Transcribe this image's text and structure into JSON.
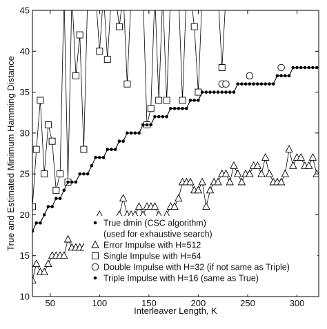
{
  "chart_data": {
    "type": "line",
    "title": "",
    "xlabel": "Interleaver Length, K",
    "ylabel": "True and Estimated Minimum Hamming Distance",
    "xlim": [
      32,
      322
    ],
    "ylim": [
      10,
      45
    ],
    "x_ticks": [
      50,
      100,
      150,
      200,
      250,
      300
    ],
    "y_ticks": [
      10,
      15,
      20,
      25,
      30,
      35,
      40,
      45
    ],
    "grid": false,
    "legend_position": "bottom-right",
    "legend": [
      {
        "marker": "dot",
        "label": "True dmin (CSC algorithm)",
        "sublabel": "(used for exhaustive search)"
      },
      {
        "marker": "triangle",
        "label": "Error Impulse with H=512"
      },
      {
        "marker": "square",
        "label": "Single Impulse with H=64"
      },
      {
        "marker": "circle",
        "label": "Double Impulse with H=32 (if not same as Triple)"
      },
      {
        "marker": "dot",
        "label": "Triple Impulse with H=16 (same as True)"
      }
    ],
    "series": [
      {
        "marker": "dot",
        "x": [
          32,
          36,
          40,
          44,
          48,
          52,
          56,
          60,
          64,
          68,
          72,
          76,
          80,
          84,
          88,
          92,
          96,
          100,
          104,
          108,
          112,
          116,
          120,
          124,
          128,
          132,
          136,
          140,
          144,
          148,
          152,
          156,
          160,
          164,
          168,
          172,
          176,
          180,
          184,
          188,
          192,
          196,
          200,
          204,
          208,
          212,
          216,
          220,
          224,
          228,
          232,
          236,
          240,
          244,
          248,
          252,
          256,
          260,
          264,
          268,
          272,
          276,
          280,
          284,
          288,
          292,
          296,
          300,
          304,
          308,
          312,
          316,
          320
        ],
        "y": [
          18,
          19,
          19,
          20,
          21,
          21,
          22,
          22,
          23,
          24,
          24,
          24,
          25,
          25,
          25,
          26,
          27,
          27,
          27,
          28,
          28,
          28,
          29,
          29,
          30,
          30,
          30,
          30,
          31,
          31,
          31,
          32,
          32,
          32,
          32,
          33,
          33,
          33,
          33,
          33,
          34,
          34,
          34,
          35,
          35,
          35,
          35,
          35,
          35,
          35,
          35,
          35,
          36,
          36,
          36,
          36,
          36,
          36,
          36,
          36,
          36,
          36,
          37,
          37,
          37,
          37,
          38,
          38,
          38,
          38,
          38,
          38,
          38
        ]
      },
      {
        "marker": "triangle",
        "x": [
          32,
          36,
          40,
          44,
          48,
          52,
          56,
          60,
          64,
          68,
          72,
          76,
          80,
          84,
          88,
          92,
          96,
          100,
          104,
          108,
          112,
          116,
          120,
          124,
          128,
          132,
          136,
          140,
          144,
          148,
          152,
          156,
          160,
          164,
          168,
          172,
          176,
          180,
          184,
          188,
          192,
          196,
          200,
          204,
          208,
          212,
          216,
          220,
          224,
          228,
          232,
          236,
          240,
          244,
          248,
          252,
          256,
          260,
          264,
          268,
          272,
          276,
          280,
          284,
          288,
          292,
          296,
          300,
          304,
          308,
          312,
          316,
          320
        ],
        "y": [
          12,
          14,
          13,
          13,
          14,
          15,
          15,
          15,
          15,
          17,
          16,
          16,
          16,
          16,
          17,
          18,
          19,
          20,
          19,
          19,
          19,
          19,
          20,
          22,
          20,
          20,
          20,
          21,
          20,
          21,
          21,
          21,
          20,
          19,
          20,
          21,
          21,
          22,
          24,
          24,
          24,
          23,
          23,
          24,
          21,
          23,
          24,
          24,
          25,
          25,
          24,
          26,
          25,
          24,
          25,
          25,
          26,
          26,
          25,
          27,
          25,
          24,
          24,
          24,
          25,
          28,
          26,
          27,
          27,
          26,
          26,
          27,
          25
        ]
      },
      {
        "marker": "square",
        "x": [
          32,
          36,
          40,
          44,
          48,
          52,
          56,
          60,
          64,
          68,
          72,
          76,
          80,
          84,
          88,
          92,
          96,
          100,
          104,
          108,
          112,
          116,
          120,
          124,
          128,
          132,
          136,
          140,
          144,
          148,
          152,
          156,
          160,
          164,
          168,
          172,
          176,
          180,
          184,
          188,
          192,
          196,
          200,
          204,
          208,
          212,
          216,
          220,
          224,
          228,
          232,
          236,
          240,
          244,
          248,
          252,
          256,
          260,
          264,
          268,
          272,
          276,
          280,
          284,
          288,
          292,
          296,
          300,
          304,
          308,
          312,
          316,
          320
        ],
        "y": [
          21,
          28,
          34,
          25,
          31,
          29,
          23,
          25,
          47,
          24,
          47,
          37,
          42,
          28,
          47,
          47,
          47,
          40,
          47,
          39,
          47,
          47,
          43,
          47,
          36,
          47,
          47,
          47,
          47,
          31,
          33,
          47,
          34,
          47,
          34,
          47,
          47,
          47,
          34,
          47,
          47,
          43,
          35,
          47,
          47,
          47,
          47,
          47,
          38,
          47,
          47,
          47,
          47,
          47,
          47,
          47,
          47,
          47,
          47,
          47,
          47,
          47,
          47,
          47,
          47,
          47,
          47,
          47,
          47,
          47,
          47,
          47,
          47
        ]
      },
      {
        "marker": "circle",
        "x": [
          224,
          228,
          252,
          284
        ],
        "y": [
          36,
          36,
          37,
          38
        ]
      }
    ]
  }
}
